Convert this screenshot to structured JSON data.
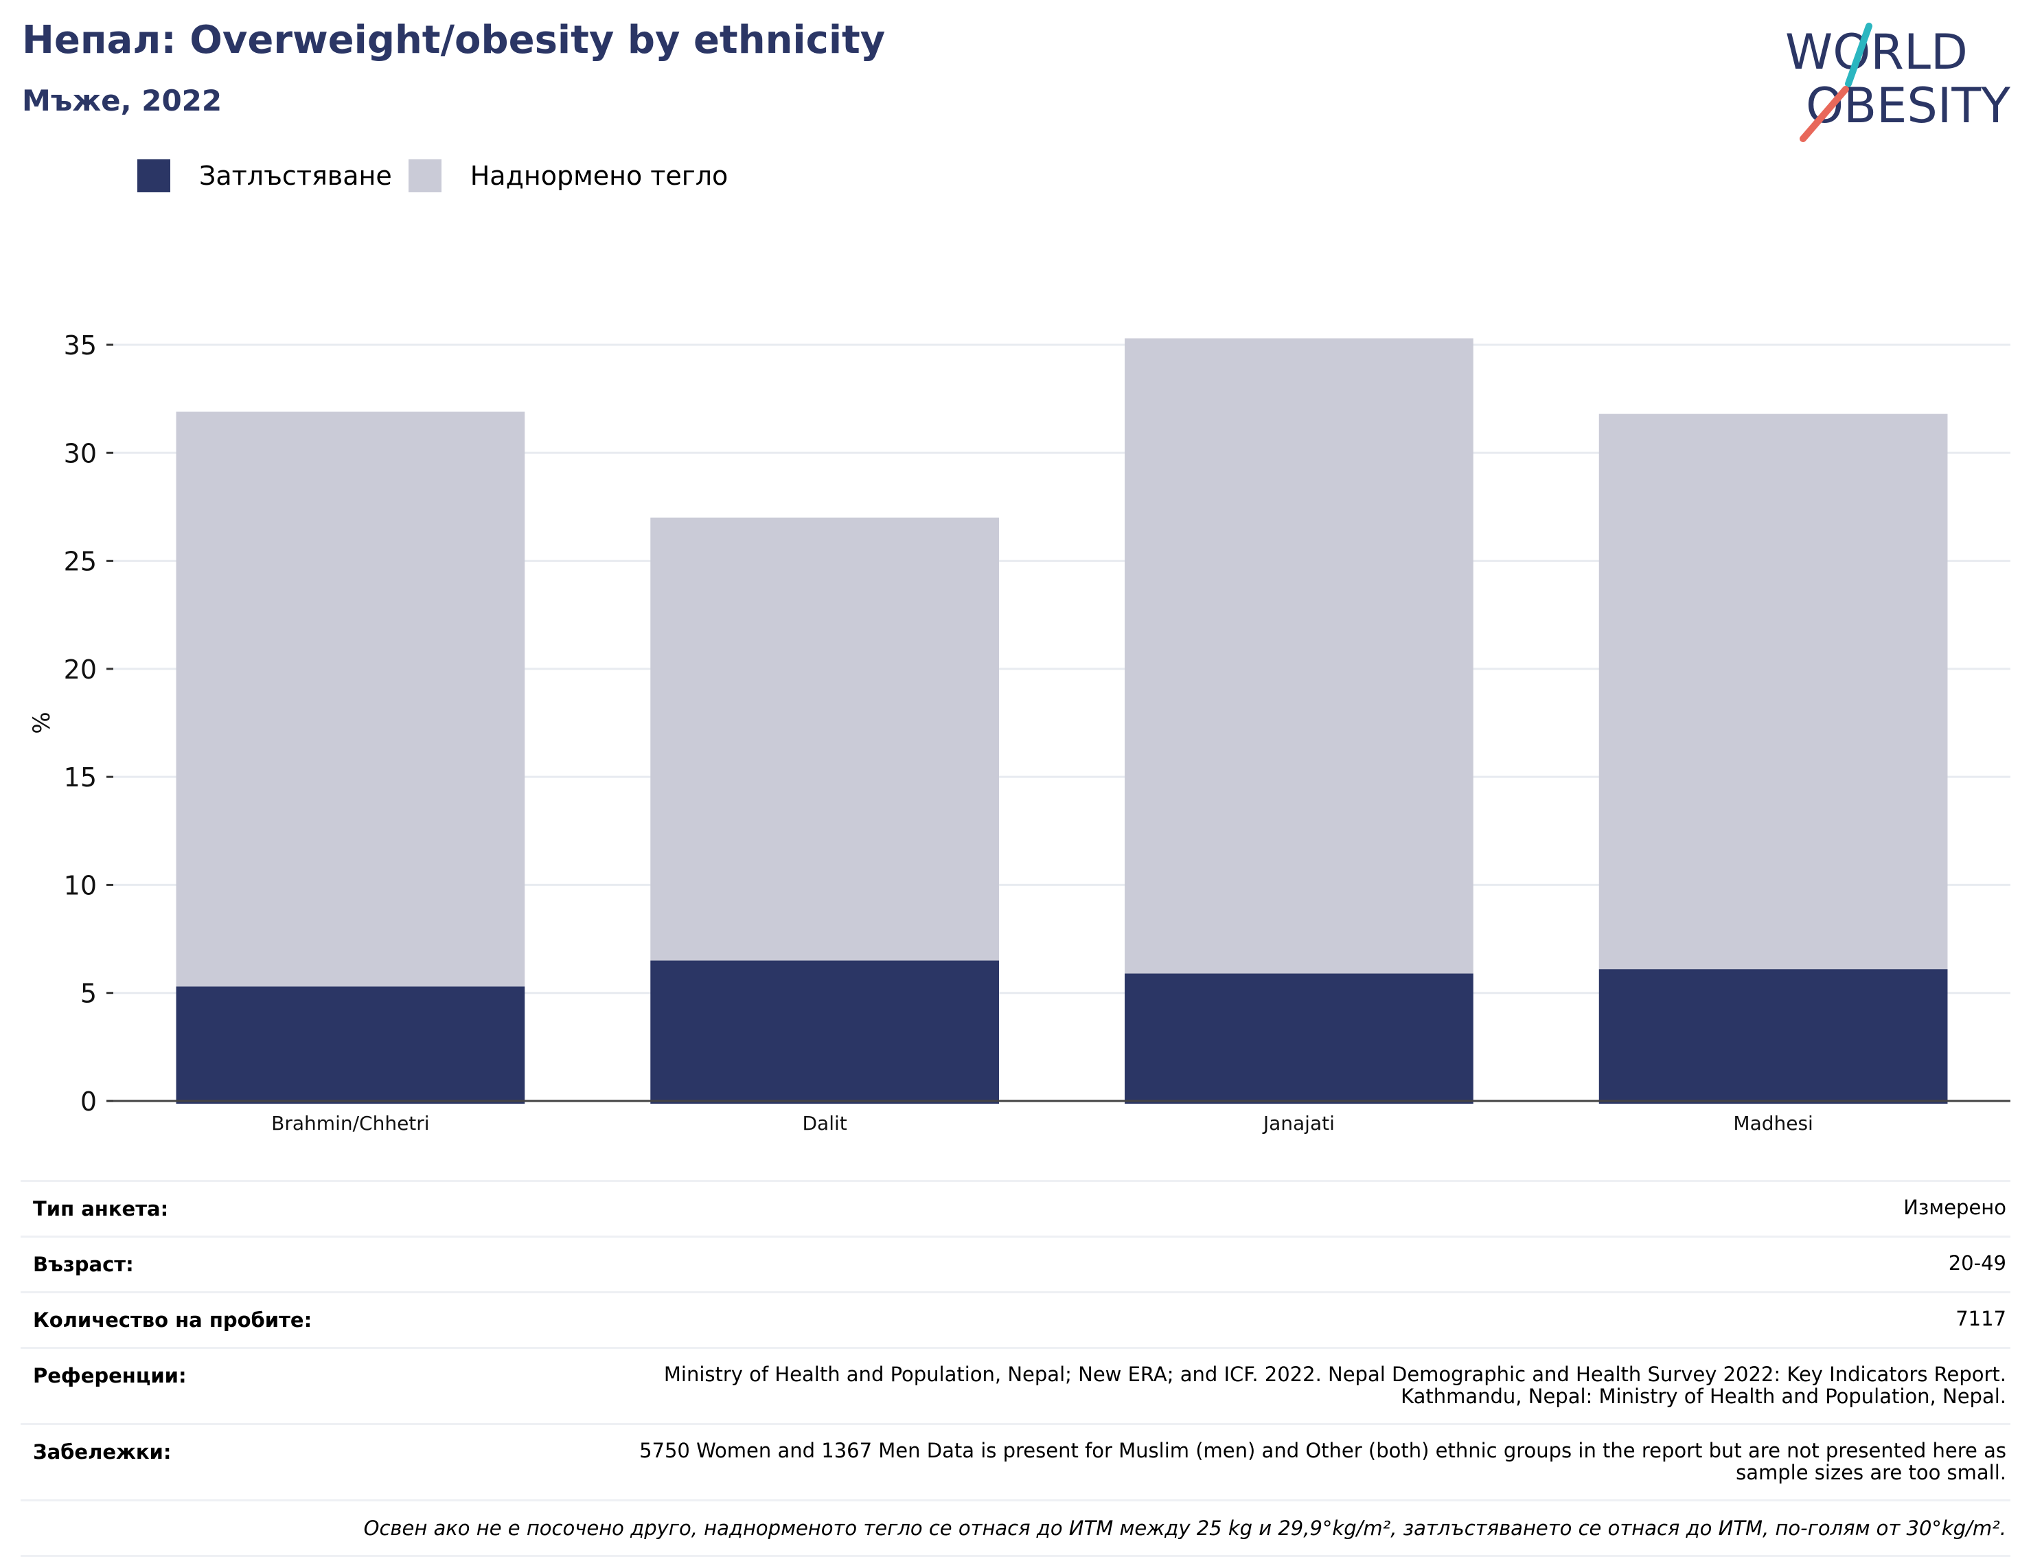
{
  "header": {
    "title": "Непал: Overweight/obesity by ethnicity",
    "subtitle": "Мъже, 2022"
  },
  "logo": {
    "line1": "WORLD",
    "line2": "OBESITY"
  },
  "colors": {
    "obesity": "#2b3665",
    "overweight": "#cacbd7",
    "title": "#2b3665",
    "grid": "#e8ebf0"
  },
  "legend": [
    {
      "label": "Затлъстяване",
      "color": "#2b3665"
    },
    {
      "label": "Наднормено тегло",
      "color": "#cacbd7"
    }
  ],
  "chart_data": {
    "type": "bar",
    "stacked": true,
    "categories": [
      "Brahmin/Chhetri",
      "Dalit",
      "Janajati",
      "Madhesi"
    ],
    "series": [
      {
        "name": "Затлъстяване",
        "values": [
          5.3,
          6.5,
          5.9,
          6.1
        ]
      },
      {
        "name": "Наднормено тегло",
        "values": [
          26.6,
          20.5,
          29.4,
          25.7
        ]
      }
    ],
    "ylabel": "%",
    "ylim": [
      0,
      35
    ],
    "yticks": [
      0,
      5,
      10,
      15,
      20,
      25,
      30,
      35
    ],
    "grid": true
  },
  "info": [
    {
      "key": "Тип анкета:",
      "value": "Измерено"
    },
    {
      "key": "Възраст:",
      "value": "20-49"
    },
    {
      "key": "Количество на пробите:",
      "value": "7117"
    },
    {
      "key": "Референции:",
      "value": "Ministry of Health and Population, Nepal; New ERA; and ICF. 2022. Nepal Demographic and Health Survey 2022: Key Indicators Report. Kathmandu, Nepal: Ministry of Health and Population, Nepal."
    },
    {
      "key": "Забележки:",
      "value": "5750 Women and 1367 Men Data is present for Muslim (men) and Other (both) ethnic groups in the report but are not presented here as sample sizes are too small."
    }
  ],
  "footnote": "Освен ако не е посочено друго, наднорменото тегло се отнася до ИТМ между 25 kg и 29,9°kg/m², затлъстяването се отнася до ИТМ, по-голям от 30°kg/m²."
}
